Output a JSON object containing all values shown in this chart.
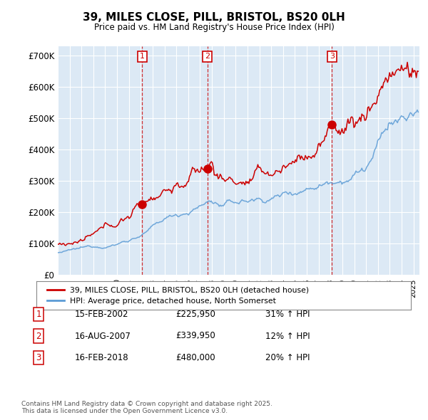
{
  "title": "39, MILES CLOSE, PILL, BRISTOL, BS20 0LH",
  "subtitle": "Price paid vs. HM Land Registry's House Price Index (HPI)",
  "legend_label_red": "39, MILES CLOSE, PILL, BRISTOL, BS20 0LH (detached house)",
  "legend_label_blue": "HPI: Average price, detached house, North Somerset",
  "footer1": "Contains HM Land Registry data © Crown copyright and database right 2025.",
  "footer2": "This data is licensed under the Open Government Licence v3.0.",
  "transactions": [
    {
      "num": 1,
      "date": "15-FEB-2002",
      "price": "£225,950",
      "change": "31% ↑ HPI",
      "year": 2002.12
    },
    {
      "num": 2,
      "date": "16-AUG-2007",
      "price": "£339,950",
      "change": "12% ↑ HPI",
      "year": 2007.62
    },
    {
      "num": 3,
      "date": "16-FEB-2018",
      "price": "£480,000",
      "change": "20% ↑ HPI",
      "year": 2018.12
    }
  ],
  "transaction_prices": [
    225950,
    339950,
    480000
  ],
  "red_color": "#cc0000",
  "blue_color": "#5b9bd5",
  "plot_bg_color": "#dce9f5",
  "background_color": "#ffffff",
  "grid_color": "#ffffff",
  "ylim": [
    0,
    730000
  ],
  "yticks": [
    0,
    100000,
    200000,
    300000,
    400000,
    500000,
    600000,
    700000
  ],
  "ytick_labels": [
    "£0",
    "£100K",
    "£200K",
    "£300K",
    "£400K",
    "£500K",
    "£600K",
    "£700K"
  ],
  "xmin": 1995.0,
  "xmax": 2025.5
}
